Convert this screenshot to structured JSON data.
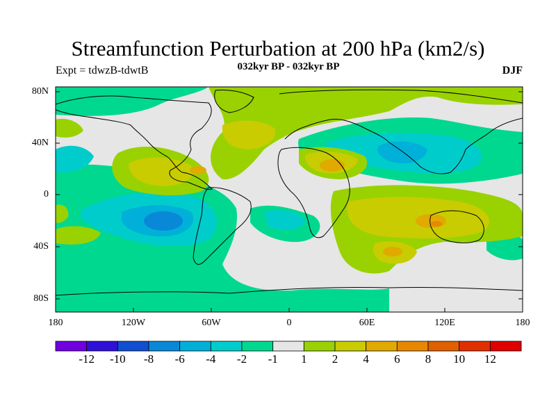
{
  "title": "Streamfunction Perturbation at 200 hPa (km2/s)",
  "subtitle": "032kyr BP - 032kyr BP",
  "left_label": "Expt = tdwzB-tdwtB",
  "right_label": "DJF",
  "lat_ticks": [
    "80N",
    "40N",
    "0",
    "40S",
    "80S"
  ],
  "lon_ticks": [
    "180",
    "120W",
    "60W",
    "0",
    "60E",
    "120E",
    "180"
  ],
  "colorbar": {
    "colors": [
      "#7000e0",
      "#3010d8",
      "#1050d0",
      "#0a88d8",
      "#00b0d8",
      "#00cccc",
      "#00d890",
      "#e6e6e6",
      "#99d200",
      "#c8cc00",
      "#e0aa00",
      "#e88800",
      "#e06000",
      "#e03000",
      "#e00000"
    ],
    "labels": [
      "-12",
      "-10",
      "-8",
      "-6",
      "-4",
      "-2",
      "-1",
      "1",
      "2",
      "4",
      "6",
      "8",
      "10",
      "12"
    ]
  },
  "field_colors": {
    "neutral": "#e6e6e6",
    "neg_weak": "#00d890",
    "neg_mid": "#00cccc",
    "neg_strong": "#00b0d8",
    "neg_core": "#0a88d8",
    "pos_weak": "#99d200",
    "pos_mid": "#c8cc00",
    "pos_strong": "#e0aa00",
    "pos_core": "#e88800"
  }
}
